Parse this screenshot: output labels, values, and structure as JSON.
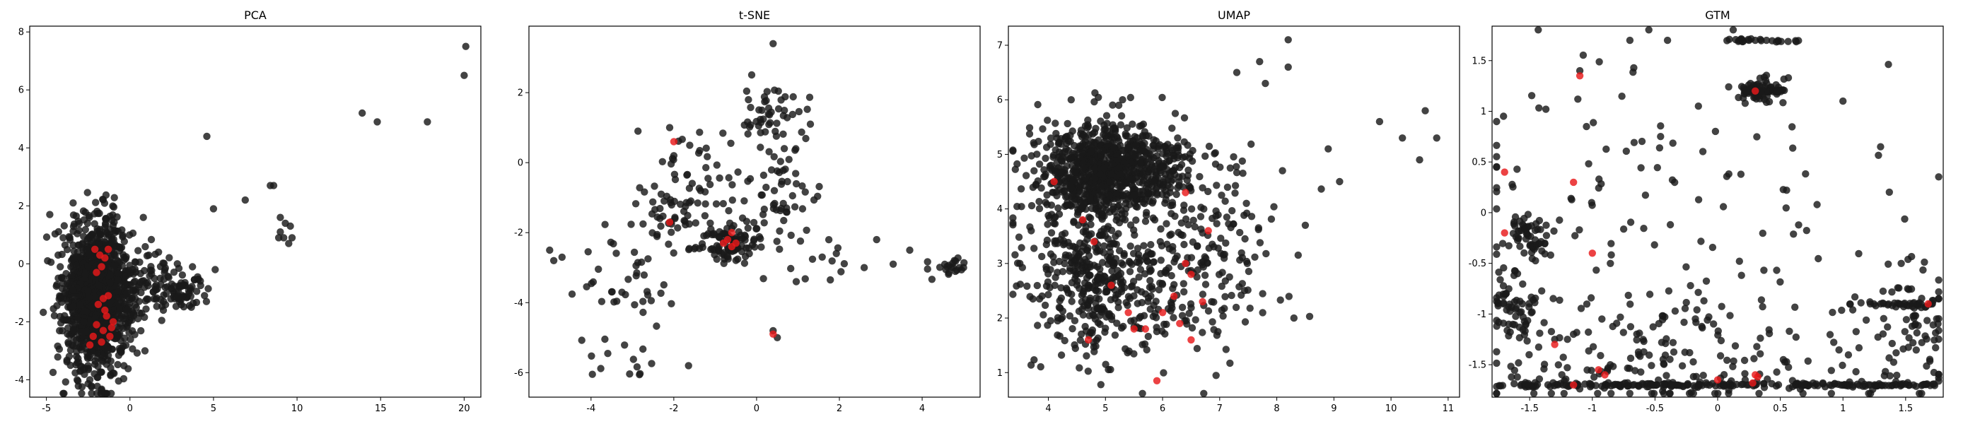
{
  "colors": {
    "base": "#1a1a1a",
    "highlight": "#e8191a"
  },
  "chart_data": [
    {
      "type": "scatter",
      "title": "PCA",
      "xlim": [
        -6,
        21
      ],
      "ylim": [
        -4.6,
        8.2
      ],
      "xticks": [
        -5,
        0,
        5,
        10,
        15,
        20
      ],
      "yticks": [
        -4,
        -2,
        0,
        2,
        4,
        6,
        8
      ],
      "clusters": [
        {
          "cx": -2.0,
          "cy": -1.1,
          "sx": 1.0,
          "sy": 1.3,
          "n": 1250
        },
        {
          "cx": 0.8,
          "cy": -0.7,
          "sx": 1.2,
          "sy": 0.6,
          "n": 120
        },
        {
          "cx": 3.2,
          "cy": -0.9,
          "sx": 0.9,
          "sy": 0.4,
          "n": 60
        }
      ],
      "points": [
        [
          20.1,
          7.5
        ],
        [
          20.0,
          6.5
        ],
        [
          13.9,
          5.2
        ],
        [
          14.8,
          4.9
        ],
        [
          17.8,
          4.9
        ],
        [
          4.6,
          4.4
        ],
        [
          8.6,
          2.7
        ],
        [
          8.4,
          2.7
        ],
        [
          6.9,
          2.2
        ],
        [
          9.0,
          1.6
        ],
        [
          9.3,
          1.4
        ],
        [
          9.6,
          1.3
        ],
        [
          9.0,
          1.1
        ],
        [
          9.2,
          0.9
        ],
        [
          9.7,
          0.9
        ],
        [
          8.9,
          0.9
        ],
        [
          9.5,
          0.7
        ],
        [
          5.0,
          1.9
        ],
        [
          5.1,
          -0.2
        ],
        [
          -4.8,
          1.7
        ],
        [
          -3.4,
          2.1
        ],
        [
          0.8,
          1.6
        ],
        [
          -4.3,
          0.3
        ],
        [
          -4.0,
          0.9
        ],
        [
          2.0,
          -1.6
        ],
        [
          0.9,
          -3.0
        ],
        [
          -2.4,
          -4.0
        ]
      ],
      "highlight": [
        [
          -1.8,
          0.3
        ],
        [
          -1.5,
          0.2
        ],
        [
          -2.1,
          0.5
        ],
        [
          -1.3,
          0.5
        ],
        [
          -1.7,
          -0.1
        ],
        [
          -2.0,
          -0.3
        ],
        [
          -1.6,
          -1.2
        ],
        [
          -1.9,
          -1.4
        ],
        [
          -1.3,
          -1.1
        ],
        [
          -1.4,
          -1.8
        ],
        [
          -1.0,
          -2.0
        ],
        [
          -2.0,
          -2.1
        ],
        [
          -1.6,
          -2.3
        ],
        [
          -1.2,
          -2.5
        ],
        [
          -2.2,
          -2.5
        ],
        [
          -1.7,
          -2.7
        ],
        [
          -2.4,
          -2.8
        ],
        [
          -1.1,
          -2.2
        ],
        [
          -1.5,
          -1.6
        ]
      ]
    },
    {
      "type": "scatter",
      "title": "t-SNE",
      "xlim": [
        -5.5,
        5.4
      ],
      "ylim": [
        -6.7,
        3.9
      ],
      "xticks": [
        -4,
        -2,
        0,
        2,
        4
      ],
      "yticks": [
        -6,
        -4,
        -2,
        0,
        2
      ],
      "clusters": [
        {
          "cx": -0.6,
          "cy": -2.3,
          "sx": 0.3,
          "sy": 0.25,
          "n": 90
        },
        {
          "cx": 0.3,
          "cy": 1.4,
          "sx": 0.4,
          "sy": 0.35,
          "n": 45
        },
        {
          "cx": -2.0,
          "cy": -1.5,
          "sx": 0.45,
          "sy": 0.6,
          "n": 40
        },
        {
          "cx": 0.6,
          "cy": -0.7,
          "sx": 0.5,
          "sy": 0.7,
          "n": 40
        },
        {
          "cx": -3.4,
          "cy": -3.3,
          "sx": 0.7,
          "sy": 0.9,
          "n": 40
        },
        {
          "cx": -1.0,
          "cy": -0.6,
          "sx": 1.1,
          "sy": 1.3,
          "n": 70
        },
        {
          "cx": 4.6,
          "cy": -3.0,
          "sx": 0.3,
          "sy": 0.12,
          "n": 20
        },
        {
          "cx": -2.9,
          "cy": -5.7,
          "sx": 0.4,
          "sy": 0.3,
          "n": 12
        },
        {
          "cx": 1.4,
          "cy": -2.7,
          "sx": 0.5,
          "sy": 0.4,
          "n": 15
        }
      ],
      "points": [
        [
          0.4,
          3.4
        ],
        [
          -5.0,
          -2.5
        ],
        [
          -4.9,
          -2.8
        ],
        [
          -4.7,
          -2.7
        ],
        [
          2.9,
          -2.2
        ],
        [
          3.3,
          -2.9
        ],
        [
          3.7,
          -2.5
        ],
        [
          2.6,
          -3.0
        ],
        [
          4.9,
          -3.0
        ],
        [
          5.0,
          -3.0
        ],
        [
          0.4,
          -4.8
        ],
        [
          0.5,
          -5.0
        ],
        [
          -2.1,
          1.0
        ],
        [
          -2.0,
          0.2
        ],
        [
          1.3,
          1.1
        ]
      ],
      "highlight": [
        [
          -2.0,
          0.6
        ],
        [
          -2.1,
          -1.7
        ],
        [
          -0.6,
          -2.0
        ],
        [
          -0.7,
          -2.2
        ],
        [
          -0.5,
          -2.3
        ],
        [
          -0.6,
          -2.4
        ],
        [
          -0.8,
          -2.3
        ],
        [
          0.4,
          -4.9
        ]
      ]
    },
    {
      "type": "scatter",
      "title": "UMAP",
      "xlim": [
        3.3,
        11.2
      ],
      "ylim": [
        0.55,
        7.35
      ],
      "xticks": [
        4,
        5,
        6,
        7,
        8,
        9,
        10,
        11
      ],
      "yticks": [
        1,
        2,
        3,
        4,
        5,
        6,
        7
      ],
      "clusters": [
        {
          "cx": 4.9,
          "cy": 4.7,
          "sx": 0.55,
          "sy": 0.45,
          "n": 650
        },
        {
          "cx": 5.6,
          "cy": 4.7,
          "sx": 0.6,
          "sy": 0.4,
          "n": 250
        },
        {
          "cx": 4.6,
          "cy": 3.0,
          "sx": 0.5,
          "sy": 0.8,
          "n": 330
        },
        {
          "cx": 6.0,
          "cy": 2.6,
          "sx": 0.9,
          "sy": 0.75,
          "n": 260
        },
        {
          "cx": 7.0,
          "cy": 3.8,
          "sx": 0.5,
          "sy": 0.6,
          "n": 60
        }
      ],
      "points": [
        [
          8.2,
          7.1
        ],
        [
          8.2,
          6.6
        ],
        [
          7.7,
          6.7
        ],
        [
          7.8,
          6.3
        ],
        [
          7.3,
          6.5
        ],
        [
          9.8,
          5.6
        ],
        [
          10.2,
          5.3
        ],
        [
          10.6,
          5.8
        ],
        [
          10.5,
          4.9
        ],
        [
          10.8,
          5.3
        ],
        [
          9.1,
          4.5
        ],
        [
          8.9,
          5.1
        ],
        [
          8.3,
          2.0
        ],
        [
          8.5,
          3.7
        ],
        [
          8.1,
          4.7
        ],
        [
          4.4,
          6.0
        ],
        [
          5.3,
          6.0
        ],
        [
          3.5,
          3.0
        ],
        [
          3.7,
          3.6
        ]
      ],
      "highlight": [
        [
          4.1,
          4.5
        ],
        [
          4.6,
          3.8
        ],
        [
          4.8,
          3.4
        ],
        [
          5.1,
          2.6
        ],
        [
          5.4,
          2.1
        ],
        [
          5.7,
          1.8
        ],
        [
          5.5,
          1.8
        ],
        [
          6.0,
          2.1
        ],
        [
          6.2,
          2.4
        ],
        [
          6.5,
          1.6
        ],
        [
          6.3,
          1.9
        ],
        [
          6.7,
          2.3
        ],
        [
          6.5,
          2.8
        ],
        [
          6.4,
          3.0
        ],
        [
          6.8,
          3.6
        ],
        [
          6.4,
          4.3
        ],
        [
          4.7,
          1.6
        ],
        [
          5.9,
          0.85
        ]
      ]
    },
    {
      "type": "scatter",
      "title": "GTM",
      "xlim": [
        -1.8,
        1.8
      ],
      "ylim": [
        -1.82,
        1.84
      ],
      "xticks": [
        -1.5,
        -1.0,
        -0.5,
        0.0,
        0.5,
        1.0,
        1.5
      ],
      "yticks": [
        -1.5,
        -1.0,
        -0.5,
        0.0,
        0.5,
        1.0,
        1.5
      ],
      "clusters": [
        {
          "cx": -1.5,
          "cy": -0.25,
          "sx": 0.08,
          "sy": 0.12,
          "n": 60
        },
        {
          "cx": -1.6,
          "cy": -0.95,
          "sx": 0.08,
          "sy": 0.25,
          "n": 60
        },
        {
          "cx": 0.33,
          "cy": 1.2,
          "sx": 0.08,
          "sy": 0.07,
          "n": 60
        },
        {
          "cx": 1.58,
          "cy": -1.0,
          "sx": 0.14,
          "sy": 0.3,
          "n": 60
        },
        {
          "cx": -0.8,
          "cy": -1.4,
          "sx": 0.6,
          "sy": 0.3,
          "n": 120
        },
        {
          "cx": 0.5,
          "cy": -1.4,
          "sx": 0.8,
          "sy": 0.3,
          "n": 100
        },
        {
          "cx": -0.5,
          "cy": 0.2,
          "sx": 1.0,
          "sy": 0.8,
          "n": 120
        }
      ],
      "rows": [
        {
          "y": -1.7,
          "x0": -1.75,
          "x1": 1.75,
          "n": 210
        },
        {
          "y": 1.7,
          "x0": 0.05,
          "x1": 0.65,
          "n": 25
        },
        {
          "y": 1.2,
          "x0": 0.2,
          "x1": 0.55,
          "n": 30
        },
        {
          "y": -0.9,
          "x0": 1.05,
          "x1": 1.75,
          "n": 30
        }
      ],
      "points": [
        [
          -0.7,
          1.7
        ],
        [
          -0.4,
          1.7
        ],
        [
          1.3,
          0.65
        ],
        [
          1.0,
          1.1
        ],
        [
          -1.1,
          1.4
        ],
        [
          0.3,
          1.7
        ]
      ],
      "highlight": [
        [
          -1.1,
          1.35
        ],
        [
          -1.15,
          0.3
        ],
        [
          -1.0,
          -0.4
        ],
        [
          -1.7,
          -0.2
        ],
        [
          -1.7,
          0.4
        ],
        [
          -1.3,
          -1.3
        ],
        [
          -1.15,
          -1.7
        ],
        [
          -0.95,
          -1.55
        ],
        [
          -0.9,
          -1.6
        ],
        [
          0.3,
          1.2
        ],
        [
          0.3,
          -1.6
        ],
        [
          0.28,
          -1.68
        ],
        [
          0.32,
          -1.62
        ],
        [
          1.68,
          -0.9
        ],
        [
          0.0,
          -1.65
        ]
      ]
    }
  ]
}
